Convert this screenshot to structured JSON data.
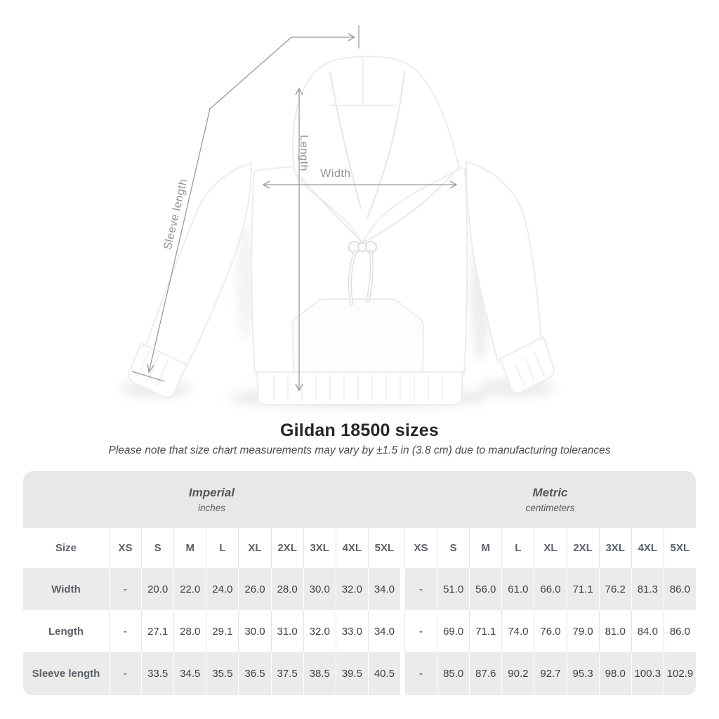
{
  "title": "Gildan 18500 sizes",
  "subtitle": "Please note that size chart measurements may vary by ±1.5 in (3.8 cm) due to manufacturing tolerances",
  "diagram": {
    "length_label": "Length",
    "width_label": "Width",
    "sleeve_label": "Sleeve length"
  },
  "chart_data": {
    "type": "table",
    "title": "Gildan 18500 sizes",
    "column_groups": [
      {
        "label": "Imperial",
        "sublabel": "inches"
      },
      {
        "label": "Metric",
        "sublabel": "centimeters"
      }
    ],
    "size_header": "Size",
    "sizes": [
      "XS",
      "S",
      "M",
      "L",
      "XL",
      "2XL",
      "3XL",
      "4XL",
      "5XL"
    ],
    "rows": [
      {
        "label": "Width",
        "imperial": [
          "-",
          "20.0",
          "22.0",
          "24.0",
          "26.0",
          "28.0",
          "30.0",
          "32.0",
          "34.0"
        ],
        "metric": [
          "-",
          "51.0",
          "56.0",
          "61.0",
          "66.0",
          "71.1",
          "76.2",
          "81.3",
          "86.0"
        ]
      },
      {
        "label": "Length",
        "imperial": [
          "-",
          "27.1",
          "28.0",
          "29.1",
          "30.0",
          "31.0",
          "32.0",
          "33.0",
          "34.0"
        ],
        "metric": [
          "-",
          "69.0",
          "71.1",
          "74.0",
          "76.0",
          "79.0",
          "81.0",
          "84.0",
          "86.0"
        ]
      },
      {
        "label": "Sleeve length",
        "imperial": [
          "-",
          "33.5",
          "34.5",
          "35.5",
          "36.5",
          "37.5",
          "38.5",
          "39.5",
          "40.5"
        ],
        "metric": [
          "-",
          "85.0",
          "87.6",
          "90.2",
          "92.7",
          "95.3",
          "98.0",
          "100.3",
          "102.9"
        ]
      }
    ]
  },
  "colors": {
    "band_gray": "#e8e8e8",
    "row_alt_gray": "#ebebeb",
    "measure_line": "#9a9a9a",
    "measure_label": "#8e9296"
  }
}
